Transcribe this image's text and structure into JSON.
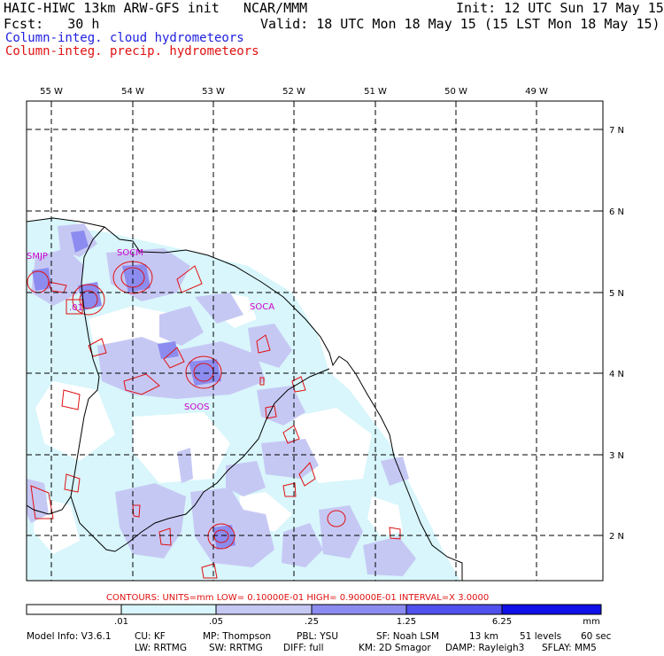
{
  "header": {
    "line1_left": "HAIC-HIWC 13km ARW-GFS init   NCAR/MMM",
    "line1_right": "Init: 12 UTC Sun 17 May 15",
    "line2_left": "Fcst:   30 h",
    "line2_right": "Valid: 18 UTC Mon 18 May 15 (15 LST Mon 18 May 15)",
    "legend_cloud": "Column-integ. cloud hydrometeors",
    "legend_precip": "Column-integ. precip. hydrometeors"
  },
  "colors": {
    "cloud_text": "#2020e0",
    "precip_text": "#e01010",
    "contour": "#e01010",
    "station": "#cc00cc",
    "shade_1": "#d8f6fb",
    "shade_2": "#c6c8f4",
    "shade_3": "#8c8cf0",
    "shade_4": "#5050ee",
    "shade_5": "#1010e8"
  },
  "map": {
    "lon_labels": [
      "55 W",
      "54 W",
      "53 W",
      "52 W",
      "51 W",
      "50 W",
      "49 W"
    ],
    "lat_labels": [
      "7 N",
      "6 N",
      "5 N",
      "4 N",
      "3 N",
      "2 N"
    ],
    "stations": [
      "SMJP",
      "SOCM",
      "SOCA",
      "SOOS",
      ".01"
    ]
  },
  "contour_info": "CONTOURS:  UNITS=mm  LOW= 0.10000E-01  HIGH= 0.90000E-01  INTERVAL=X  3.0000",
  "colorbar": {
    "ticks": [
      ".01",
      ".05",
      ".25",
      "1.25",
      "6.25"
    ],
    "units": "mm"
  },
  "footer": {
    "line1": [
      "Model Info: V3.6.1",
      "CU: KF",
      "MP: Thompson",
      "PBL: YSU",
      "SF: Noah LSM",
      "13 km",
      "51 levels",
      "60 sec"
    ],
    "line2": [
      "LW: RRTMG",
      "SW: RRTMG",
      "DIFF: full",
      "KM: 2D Smagor",
      "DAMP: Rayleigh3",
      "SFLAY: MM5"
    ]
  }
}
